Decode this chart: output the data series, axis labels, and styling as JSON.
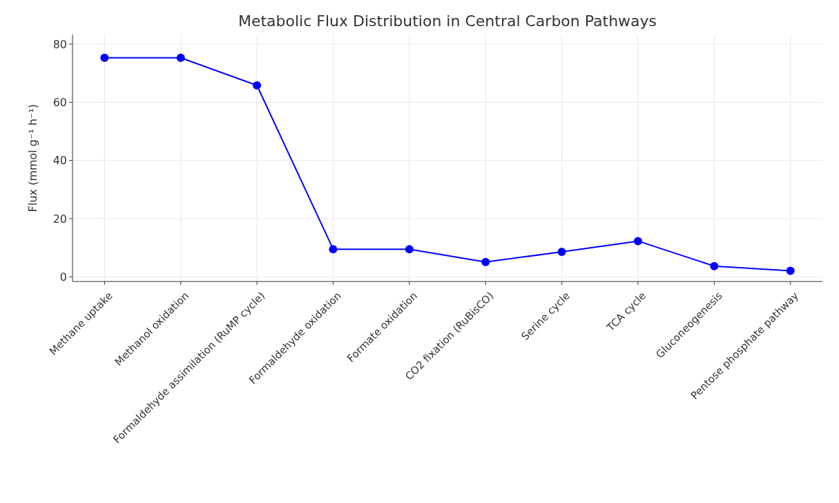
{
  "chart_data": {
    "type": "line",
    "title": "Metabolic Flux Distribution in Central Carbon Pathways",
    "ylabel": "Flux (mmol g⁻¹ h⁻¹)",
    "categories": [
      "Methane uptake",
      "Methanol oxidation",
      "Formaldehyde assimilation (RuMP cycle)",
      "Formaldehyde oxidation",
      "Formate oxidation",
      "CO2 fixation (RuBisCO)",
      "Serine cycle",
      "TCA cycle",
      "Gluconeogenesis",
      "Pentose phosphate pathway"
    ],
    "series": [
      {
        "color": "#0000ff",
        "values": [
          75.3,
          75.3,
          65.8,
          9.5,
          9.5,
          5.1,
          8.6,
          12.3,
          3.7,
          2.1
        ]
      }
    ],
    "ylim": [
      -1.6,
      83.3
    ],
    "yticks": [
      0,
      20,
      40,
      60,
      80
    ],
    "grid": true,
    "marker": "circle",
    "line_style": "solid"
  }
}
